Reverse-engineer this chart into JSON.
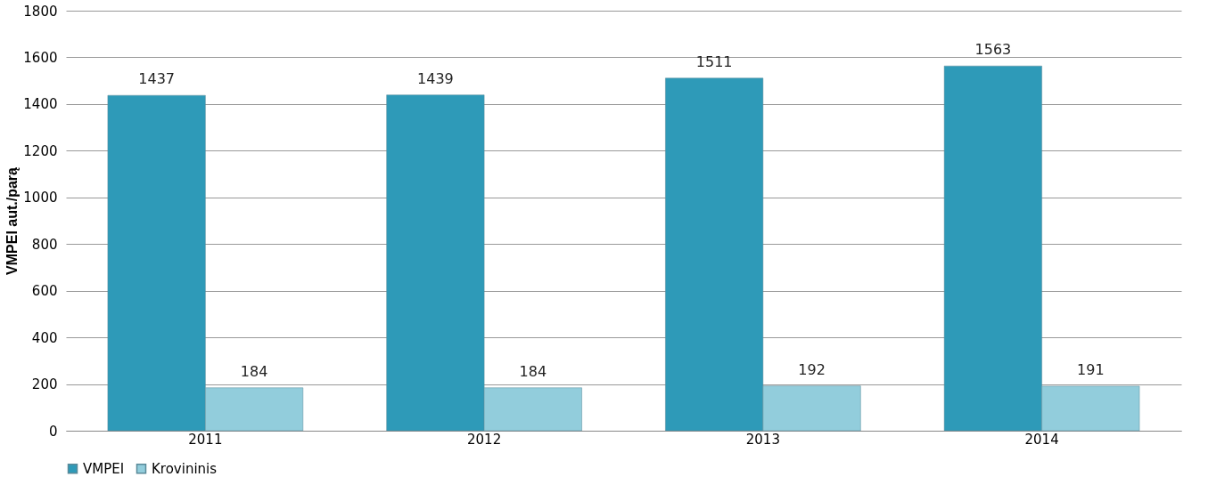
{
  "chart_data": {
    "type": "bar",
    "ylabel": "VMPEI aut./parą",
    "categories": [
      "2011",
      "2012",
      "2013",
      "2014"
    ],
    "series": [
      {
        "name": "VMPEI",
        "color": "#2e9ab8",
        "values": [
          1437,
          1439,
          1511,
          1563
        ]
      },
      {
        "name": "Krovininis",
        "color": "#92cddc",
        "values": [
          184,
          184,
          192,
          191
        ]
      }
    ],
    "ylim": [
      0,
      1800
    ],
    "yticks": [
      0,
      200,
      400,
      600,
      800,
      1000,
      1200,
      1400,
      1600,
      1800
    ],
    "grid": "y",
    "legend": "bottom",
    "data_labels": true
  }
}
